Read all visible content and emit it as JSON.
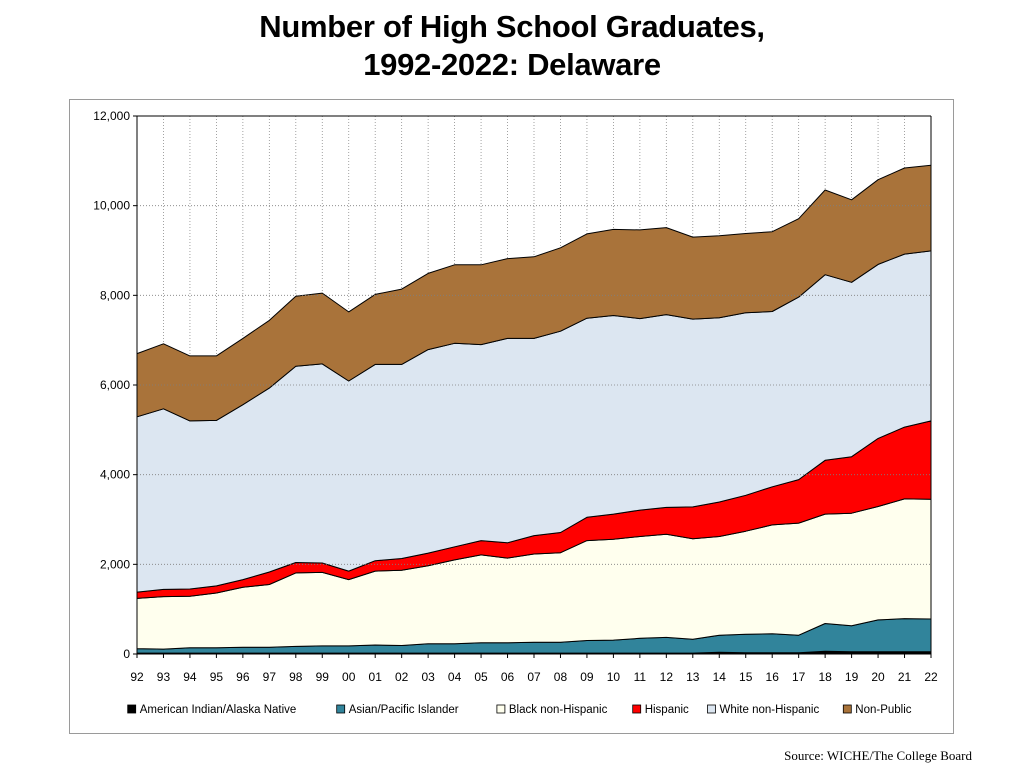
{
  "title": {
    "line1": "Number of High School Graduates,",
    "line2": "1992-2022:  Delaware"
  },
  "source": "Source: WICHE/The College Board",
  "chart_data": {
    "type": "area",
    "stacked": true,
    "x": [
      "92",
      "93",
      "94",
      "95",
      "96",
      "97",
      "98",
      "99",
      "00",
      "01",
      "02",
      "03",
      "04",
      "05",
      "06",
      "07",
      "08",
      "09",
      "10",
      "11",
      "12",
      "13",
      "14",
      "15",
      "16",
      "17",
      "18",
      "19",
      "20",
      "21",
      "22"
    ],
    "ylim": [
      0,
      12000
    ],
    "yticks": [
      0,
      2000,
      4000,
      6000,
      8000,
      10000,
      12000
    ],
    "ytick_labels": [
      "0",
      "2,000",
      "4,000",
      "6,000",
      "8,000",
      "10,000",
      "12,000"
    ],
    "grid": true,
    "legend_position": "bottom",
    "series": [
      {
        "name": "American Indian/Alaska  Native",
        "color": "#000000",
        "values": [
          20,
          20,
          20,
          20,
          20,
          20,
          20,
          20,
          20,
          20,
          20,
          20,
          20,
          20,
          20,
          20,
          20,
          20,
          20,
          20,
          20,
          20,
          40,
          30,
          30,
          30,
          60,
          50,
          50,
          50,
          50
        ]
      },
      {
        "name": "Asian/Pacific Islander",
        "color": "#31849b",
        "values": [
          100,
          90,
          120,
          120,
          130,
          130,
          150,
          160,
          160,
          180,
          170,
          210,
          210,
          230,
          230,
          240,
          240,
          280,
          290,
          330,
          350,
          310,
          380,
          410,
          420,
          390,
          620,
          580,
          710,
          740,
          730
        ]
      },
      {
        "name": "Black non-Hispanic",
        "color": "#ffffee",
        "values": [
          1120,
          1170,
          1150,
          1220,
          1340,
          1400,
          1640,
          1640,
          1480,
          1650,
          1680,
          1740,
          1870,
          1960,
          1890,
          1970,
          2000,
          2230,
          2250,
          2270,
          2300,
          2240,
          2200,
          2300,
          2430,
          2500,
          2440,
          2510,
          2530,
          2670,
          2670
        ]
      },
      {
        "name": "Hispanic",
        "color": "#ff0000",
        "values": [
          140,
          160,
          160,
          160,
          170,
          280,
          230,
          210,
          190,
          230,
          260,
          280,
          290,
          320,
          340,
          410,
          450,
          520,
          560,
          590,
          600,
          710,
          770,
          800,
          850,
          970,
          1200,
          1260,
          1520,
          1600,
          1750
        ]
      },
      {
        "name": "White non-Hispanic",
        "color": "#dce6f1",
        "values": [
          3910,
          4030,
          3750,
          3690,
          3900,
          4100,
          4380,
          4440,
          4240,
          4380,
          4330,
          4540,
          4540,
          4370,
          4560,
          4400,
          4490,
          4440,
          4430,
          4270,
          4300,
          4190,
          4110,
          4070,
          3910,
          4070,
          4140,
          3890,
          3880,
          3860,
          3790
        ]
      },
      {
        "name": "Non-Public",
        "color": "#a9733a",
        "values": [
          1410,
          1450,
          1450,
          1440,
          1480,
          1510,
          1560,
          1580,
          1540,
          1560,
          1680,
          1700,
          1750,
          1780,
          1780,
          1820,
          1860,
          1880,
          1920,
          1980,
          1940,
          1830,
          1830,
          1770,
          1780,
          1750,
          1890,
          1840,
          1890,
          1920,
          1910
        ]
      }
    ]
  }
}
